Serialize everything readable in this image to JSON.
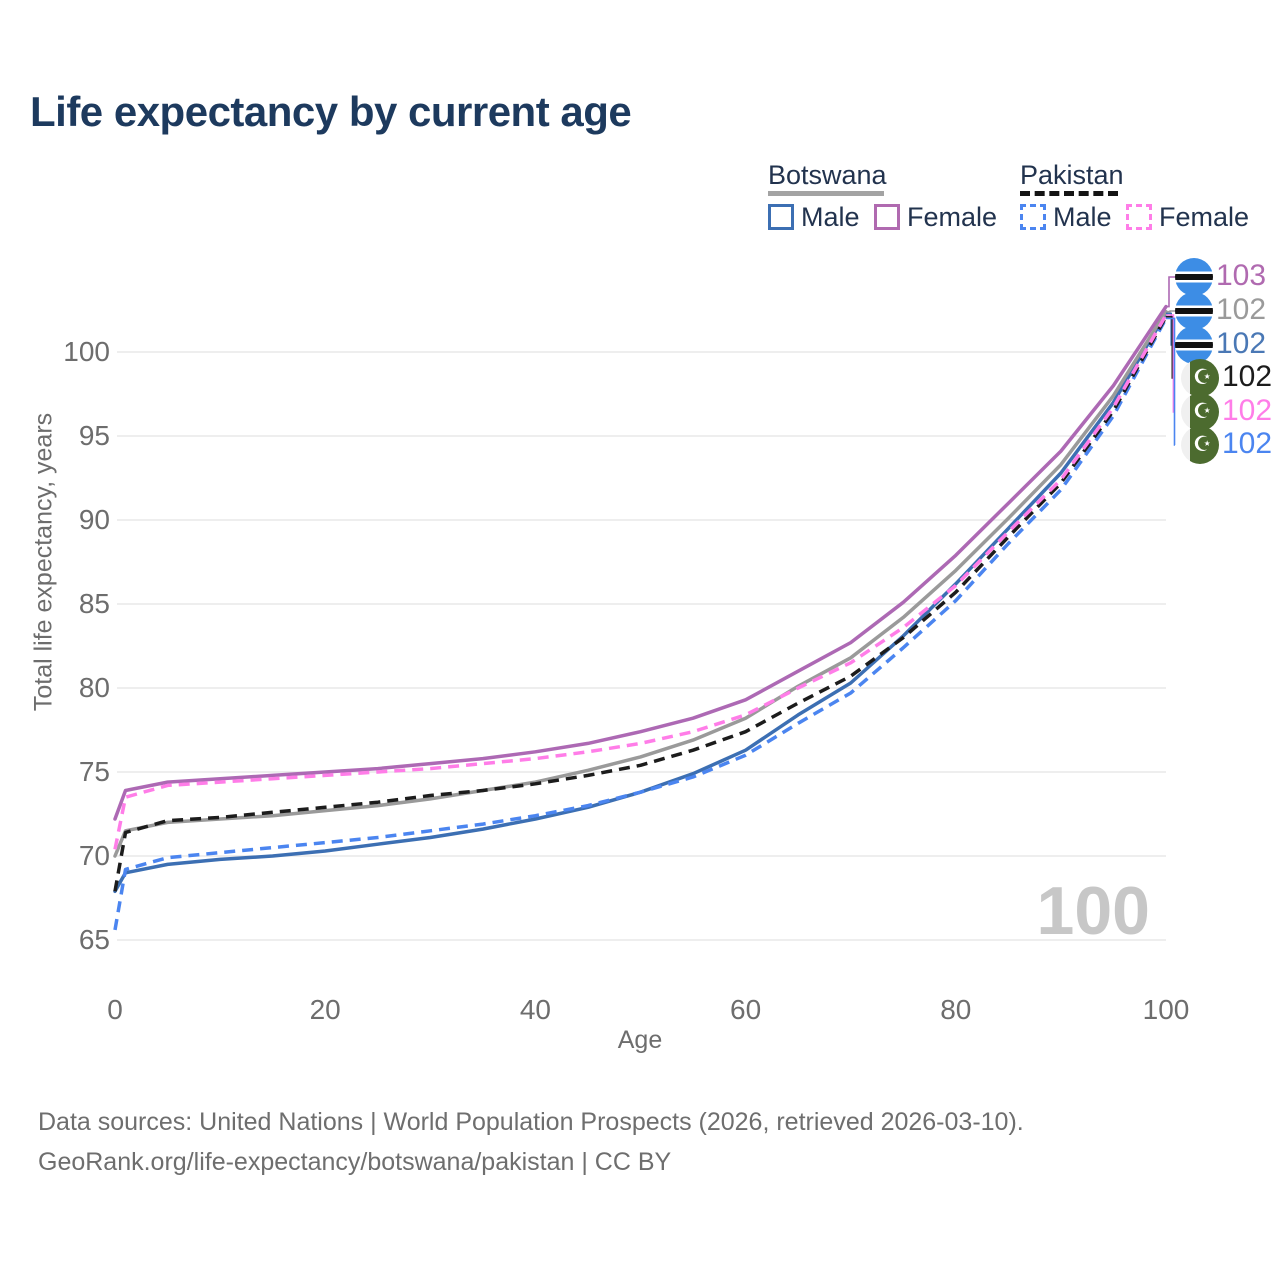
{
  "title": "Life expectancy by current age",
  "watermark": "100",
  "legend": {
    "groups": [
      {
        "label": "Botswana",
        "line_style": "solid",
        "underline_color": "#a3a3a3",
        "items": [
          {
            "label": "Male",
            "color": "#3c6fb3"
          },
          {
            "label": "Female",
            "color": "#b06ab0"
          }
        ]
      },
      {
        "label": "Pakistan",
        "line_style": "dashed",
        "underline_color": "#141414",
        "items": [
          {
            "label": "Male",
            "color": "#4b85f0"
          },
          {
            "label": "Female",
            "color": "#ff7de8"
          }
        ]
      }
    ]
  },
  "end_labels": [
    {
      "value": "103",
      "color": "#b06ab0",
      "flag": "botswana",
      "series": "Botswana Female"
    },
    {
      "value": "102",
      "color": "#9a9a9a",
      "flag": "botswana",
      "series": "Botswana"
    },
    {
      "value": "102",
      "color": "#4a78b5",
      "flag": "botswana",
      "series": "Botswana Male"
    },
    {
      "value": "102",
      "color": "#1c1c1c",
      "flag": "pakistan",
      "series": "Pakistan"
    },
    {
      "value": "102",
      "color": "#ff7de8",
      "flag": "pakistan",
      "series": "Pakistan Female"
    },
    {
      "value": "102",
      "color": "#4b85f0",
      "flag": "pakistan",
      "series": "Pakistan Male"
    }
  ],
  "footer": {
    "line1": "Data sources: United Nations | World Population Prospects (2026, retrieved 2026-03-10).",
    "line2": "GeoRank.org/life-expectancy/botswana/pakistan | CC BY"
  },
  "chart_data": {
    "type": "line",
    "title": "Life expectancy by current age",
    "xlabel": "Age",
    "ylabel": "Total life expectancy, years",
    "x_ticks": [
      0,
      20,
      40,
      60,
      80,
      100
    ],
    "y_ticks": [
      65,
      70,
      75,
      80,
      85,
      90,
      95,
      100
    ],
    "xlim": [
      0,
      100
    ],
    "ylim": [
      63.5,
      103.5
    ],
    "grid": "horizontal",
    "legend_position": "top-right",
    "x": [
      0,
      1,
      5,
      10,
      15,
      20,
      25,
      30,
      35,
      40,
      45,
      50,
      55,
      60,
      65,
      70,
      75,
      80,
      85,
      90,
      95,
      100
    ],
    "series": [
      {
        "name": "Botswana Male",
        "country": "Botswana",
        "sex": "male",
        "color": "#3c6fb3",
        "dash": false,
        "values": [
          67.9,
          69.0,
          69.5,
          69.8,
          70.0,
          70.3,
          70.7,
          71.1,
          71.6,
          72.2,
          72.9,
          73.8,
          74.9,
          76.3,
          78.4,
          80.3,
          83.1,
          86.2,
          89.5,
          92.8,
          97.0,
          102.3
        ]
      },
      {
        "name": "Botswana",
        "country": "Botswana",
        "sex": "both",
        "color": "#9a9a9a",
        "dash": false,
        "values": [
          70.0,
          71.5,
          72.0,
          72.2,
          72.4,
          72.7,
          73.0,
          73.4,
          73.9,
          74.4,
          75.1,
          75.9,
          76.9,
          78.2,
          80.1,
          81.8,
          84.2,
          87.0,
          90.1,
          93.3,
          97.4,
          102.4
        ]
      },
      {
        "name": "Botswana Female",
        "country": "Botswana",
        "sex": "female",
        "color": "#ad69b4",
        "dash": false,
        "values": [
          72.2,
          73.9,
          74.4,
          74.6,
          74.8,
          75.0,
          75.2,
          75.5,
          75.8,
          76.2,
          76.7,
          77.4,
          78.2,
          79.3,
          81.0,
          82.7,
          85.1,
          87.9,
          91.0,
          94.1,
          98.0,
          102.7
        ]
      },
      {
        "name": "Pakistan Male",
        "country": "Pakistan",
        "sex": "male",
        "color": "#4b85f0",
        "dash": true,
        "values": [
          65.6,
          69.2,
          69.9,
          70.2,
          70.5,
          70.8,
          71.1,
          71.5,
          71.9,
          72.4,
          73.0,
          73.8,
          74.7,
          76.0,
          77.9,
          79.7,
          82.4,
          85.2,
          88.6,
          91.8,
          96.2,
          102.0
        ]
      },
      {
        "name": "Pakistan",
        "country": "Pakistan",
        "sex": "both",
        "color": "#1c1c1c",
        "dash": true,
        "values": [
          67.9,
          71.4,
          72.1,
          72.3,
          72.6,
          72.9,
          73.2,
          73.6,
          73.9,
          74.3,
          74.8,
          75.4,
          76.3,
          77.4,
          79.1,
          80.7,
          83.0,
          85.7,
          89.0,
          92.2,
          96.5,
          102.1
        ]
      },
      {
        "name": "Pakistan Female",
        "country": "Pakistan",
        "sex": "female",
        "color": "#ff7de8",
        "dash": true,
        "values": [
          70.4,
          73.5,
          74.2,
          74.4,
          74.6,
          74.8,
          75.0,
          75.2,
          75.5,
          75.8,
          76.2,
          76.7,
          77.4,
          78.4,
          80.0,
          81.5,
          83.6,
          86.1,
          89.3,
          92.4,
          96.7,
          102.2
        ]
      }
    ]
  }
}
